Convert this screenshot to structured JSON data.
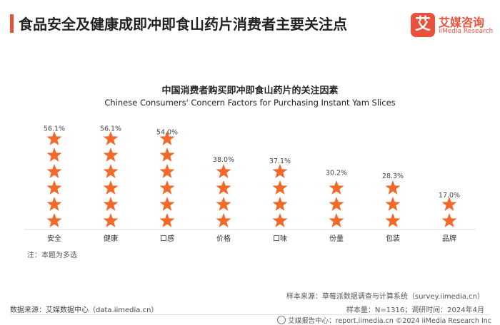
{
  "header": {
    "title": "食品安全及健康成即冲即食山药片消费者主要关注点",
    "logo_cn": "艾媒咨询",
    "logo_en": "iiMedia Research",
    "logo_mark": "艾"
  },
  "chart_data": {
    "type": "bar",
    "title": "中国消费者购买即冲即食山药片的关注因素",
    "subtitle": "Chinese Consumers' Concern Factors for Purchasing Instant Yam Slices",
    "categories": [
      "安全",
      "健康",
      "口感",
      "价格",
      "口味",
      "份量",
      "包装",
      "品牌"
    ],
    "values": [
      56.1,
      56.1,
      54.0,
      38.0,
      37.1,
      30.2,
      28.3,
      17.0
    ],
    "value_labels": [
      "56.1%",
      "56.1%",
      "54.0%",
      "38.0%",
      "37.1%",
      "30.2%",
      "28.3%",
      "17.0%"
    ],
    "unit": "%",
    "ylim": [
      0,
      60
    ],
    "mark": "star pictograph",
    "star_color": "#f26a2b",
    "grid": false,
    "legend": "none"
  },
  "note": "注：本题为多选",
  "sources": {
    "sample_source": "样本来源：草莓派数据调查与计算系统（survey.iimedia.cn）",
    "data_source": "数据来源：艾媒数据中心（data.iimedia.cn）",
    "sample_size": "样本量：N=1316；调研时间：2024年4月"
  },
  "footer": "艾媒报告中心：report.iimedia.cn  ©2024 iiMedia Research Inc"
}
